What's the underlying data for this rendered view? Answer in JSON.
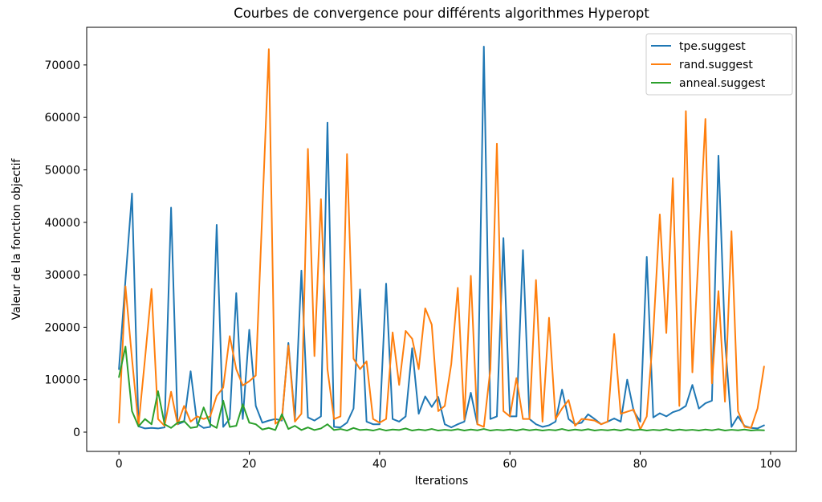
{
  "figure": {
    "background": "#ffffff",
    "spine_color": "#000000"
  },
  "chart_data": {
    "type": "line",
    "title": "Courbes de convergence pour différents algorithmes Hyperopt",
    "xlabel": "Iterations",
    "ylabel": "Valeur de la fonction objectif",
    "x_ticks": [
      0,
      20,
      40,
      60,
      80,
      100
    ],
    "y_ticks": [
      0,
      10000,
      20000,
      30000,
      40000,
      50000,
      60000,
      70000
    ],
    "xlim": [
      -4.95,
      103.95
    ],
    "ylim": [
      -3675,
      77175
    ],
    "grid": false,
    "legend_position": "upper right",
    "x": "iteration index 0..99 (one point per iteration)",
    "series": [
      {
        "name": "tpe.suggest",
        "color": "#1f77b4",
        "values": [
          12000,
          29000,
          45500,
          1100,
          700,
          800,
          700,
          900,
          42800,
          1500,
          2000,
          11600,
          1600,
          800,
          1000,
          39500,
          1000,
          2500,
          26500,
          2500,
          19500,
          5000,
          1800,
          2200,
          2500,
          2200,
          17000,
          2500,
          30800,
          2800,
          2200,
          3000,
          59000,
          1000,
          900,
          1800,
          4500,
          27200,
          2000,
          1500,
          1500,
          28300,
          2500,
          2000,
          3000,
          16000,
          3500,
          6800,
          4800,
          6700,
          1500,
          900,
          1500,
          2000,
          7500,
          1500,
          73500,
          2500,
          3000,
          37000,
          3000,
          3000,
          34700,
          2500,
          1500,
          1000,
          1300,
          2000,
          8100,
          2500,
          1500,
          1800,
          3400,
          2500,
          1500,
          2000,
          2600,
          2000,
          10000,
          4000,
          2000,
          33400,
          2800,
          3600,
          3000,
          3800,
          4200,
          5000,
          9000,
          4500,
          5500,
          6000,
          52700,
          17700,
          1000,
          3000,
          1200,
          800,
          700,
          1300
        ]
      },
      {
        "name": "rand.suggest",
        "color": "#ff7f0e",
        "values": [
          1800,
          27800,
          14000,
          1300,
          14000,
          27300,
          2500,
          1200,
          7700,
          1500,
          5000,
          2000,
          3000,
          2500,
          3000,
          6900,
          8500,
          18300,
          12000,
          8900,
          9700,
          10800,
          42000,
          73000,
          1600,
          2500,
          16500,
          2000,
          3500,
          54000,
          14500,
          44400,
          12000,
          2500,
          3000,
          53000,
          14000,
          12000,
          13500,
          2500,
          1800,
          2500,
          19000,
          9000,
          19300,
          17800,
          12000,
          23600,
          20500,
          4000,
          5000,
          13000,
          27500,
          2400,
          29800,
          1500,
          1000,
          12000,
          55000,
          4000,
          3000,
          10300,
          2500,
          2500,
          29000,
          2000,
          21800,
          2500,
          4500,
          6100,
          1200,
          2500,
          2400,
          2200,
          1500,
          2000,
          18700,
          3500,
          3900,
          4300,
          500,
          3000,
          19000,
          41500,
          18900,
          48400,
          5000,
          61200,
          11400,
          35000,
          59700,
          9300,
          26900,
          5800,
          38300,
          4000,
          1000,
          800,
          4500,
          12500
        ]
      },
      {
        "name": "anneal.suggest",
        "color": "#2ca02c",
        "values": [
          10500,
          16300,
          4000,
          1100,
          2500,
          1500,
          7800,
          1500,
          800,
          1800,
          2100,
          800,
          1000,
          4700,
          1500,
          800,
          6000,
          1000,
          1200,
          5300,
          1800,
          1500,
          500,
          800,
          400,
          3400,
          600,
          1200,
          400,
          900,
          400,
          700,
          1500,
          400,
          600,
          300,
          800,
          400,
          500,
          300,
          600,
          300,
          500,
          400,
          700,
          300,
          500,
          350,
          600,
          300,
          450,
          350,
          550,
          300,
          500,
          350,
          600,
          300,
          450,
          350,
          500,
          300,
          550,
          350,
          500,
          300,
          450,
          350,
          600,
          300,
          500,
          350,
          550,
          300,
          450,
          350,
          500,
          300,
          550,
          350,
          500,
          300,
          450,
          350,
          550,
          300,
          500,
          350,
          450,
          300,
          500,
          350,
          550,
          300,
          450,
          350,
          500,
          300,
          400,
          350
        ]
      }
    ]
  }
}
